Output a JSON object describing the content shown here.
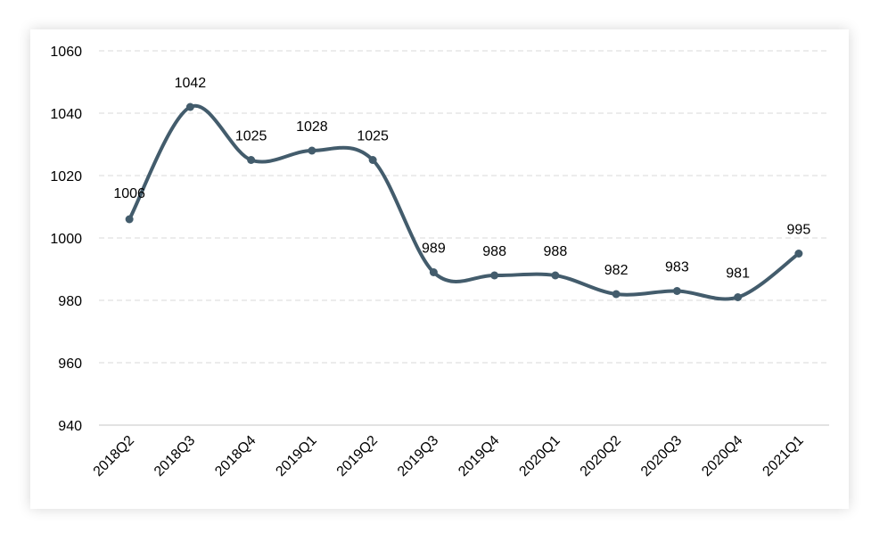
{
  "chart_data": {
    "type": "line",
    "smooth": true,
    "categories": [
      "2018Q2",
      "2018Q3",
      "2018Q4",
      "2019Q1",
      "2019Q2",
      "2019Q3",
      "2019Q4",
      "2020Q1",
      "2020Q2",
      "2020Q3",
      "2020Q4",
      "2021Q1"
    ],
    "series": [
      {
        "values": [
          1006,
          1042,
          1025,
          1028,
          1025,
          989,
          988,
          988,
          982,
          983,
          981,
          995
        ],
        "color": "#435c6c"
      }
    ],
    "data_labels": [
      "1006",
      "1042",
      "1025",
      "1028",
      "1025",
      "989",
      "988",
      "988",
      "982",
      "983",
      "981",
      "995"
    ],
    "ylim": [
      940,
      1060
    ],
    "yticks": [
      940,
      960,
      980,
      1000,
      1020,
      1040,
      1060
    ],
    "ytick_labels": [
      "940",
      "960",
      "980",
      "1000",
      "1020",
      "1040",
      "1060"
    ],
    "xtick_rotation": -45,
    "grid": "horizontal-dashed",
    "gridline_color": "#d9d9d9",
    "axis_color": "#d0d0d0",
    "title": "",
    "xlabel": "",
    "ylabel": ""
  }
}
